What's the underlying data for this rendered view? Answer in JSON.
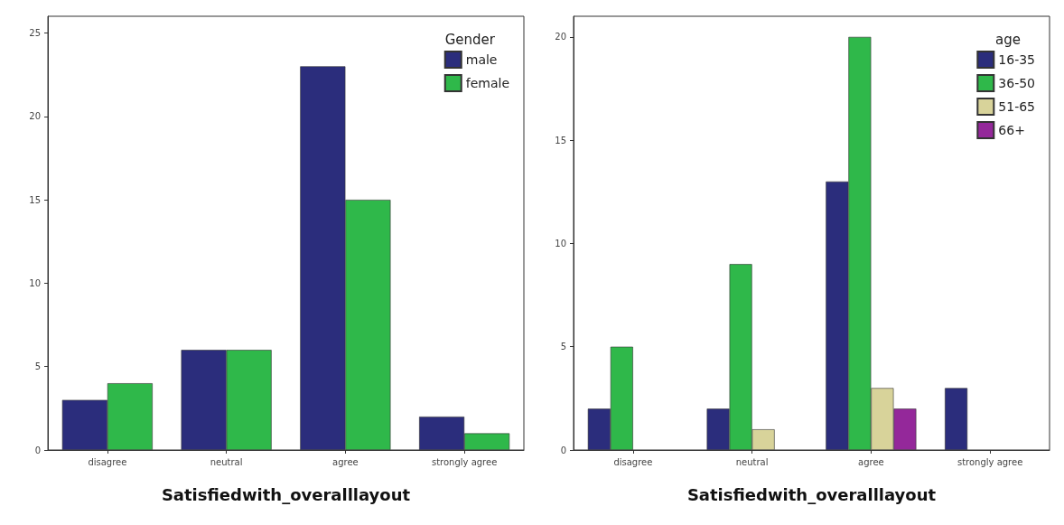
{
  "chart_data": [
    {
      "type": "bar",
      "xlabel": "Satisfiedwith_overalllayout",
      "legend_title": "Gender",
      "categories": [
        "disagree",
        "neutral",
        "agree",
        "strongly agree"
      ],
      "series": [
        {
          "name": "male",
          "color": "#2b2d7c",
          "values": [
            3,
            6,
            23,
            2
          ]
        },
        {
          "name": "female",
          "color": "#2fb84a",
          "values": [
            4,
            6,
            15,
            1
          ]
        }
      ],
      "ylim": [
        0,
        26
      ],
      "yticks": [
        0,
        5,
        10,
        15,
        20,
        25
      ],
      "grid": false,
      "legend": "top right"
    },
    {
      "type": "bar",
      "xlabel": "Satisfiedwith_overalllayout",
      "legend_title": "age",
      "categories": [
        "disagree",
        "neutral",
        "agree",
        "strongly agree"
      ],
      "series": [
        {
          "name": "16-35",
          "color": "#2b2d7c",
          "values": [
            2,
            2,
            13,
            3
          ]
        },
        {
          "name": "36-50",
          "color": "#2fb84a",
          "values": [
            5,
            9,
            20,
            null
          ]
        },
        {
          "name": "51-65",
          "color": "#d8d39a",
          "values": [
            null,
            1,
            3,
            null
          ]
        },
        {
          "name": "66+",
          "color": "#94289a",
          "values": [
            null,
            null,
            2,
            null
          ]
        }
      ],
      "ylim": [
        0,
        21
      ],
      "yticks": [
        0,
        5,
        10,
        15,
        20
      ],
      "grid": false,
      "legend": "top right"
    }
  ]
}
